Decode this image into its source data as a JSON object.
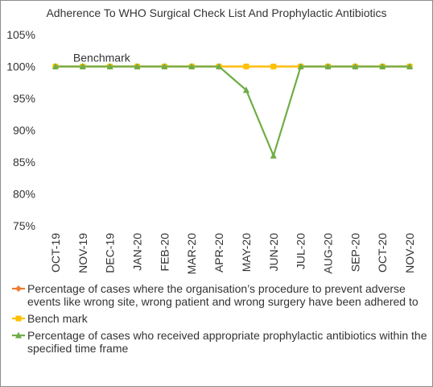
{
  "chart_data": {
    "type": "line",
    "title": "Adherence To WHO Surgical Check List And Prophylactic Antibiotics",
    "categories": [
      "OCT-19",
      "NOV-19",
      "DEC-19",
      "JAN-20",
      "FEB-20",
      "MAR-20",
      "APR-20",
      "MAY-20",
      "JUN-20",
      "JUL-20",
      "AUG-20",
      "SEP-20",
      "OCT-20",
      "NOV-20"
    ],
    "ylim": [
      75,
      105
    ],
    "yticks": [
      75,
      80,
      85,
      90,
      95,
      100,
      105
    ],
    "ytick_labels": [
      "75%",
      "80%",
      "85%",
      "90%",
      "95%",
      "100%",
      "105%"
    ],
    "grid": false,
    "legend_position": "bottom",
    "annotation": "Benchmark",
    "series": [
      {
        "name": "Percentage of cases where the organisation’s procedure to prevent adverse events like wrong site, wrong patient and wrong surgery have been adhered to",
        "color": "#ed7d31",
        "marker": "diamond",
        "values": [
          100,
          100,
          100,
          100,
          100,
          100,
          100,
          100,
          100,
          100,
          100,
          100,
          100,
          100
        ]
      },
      {
        "name": "Bench mark",
        "color": "#ffc000",
        "marker": "square",
        "values": [
          100,
          100,
          100,
          100,
          100,
          100,
          100,
          100,
          100,
          100,
          100,
          100,
          100,
          100
        ]
      },
      {
        "name": "Percentage of cases who received appropriate prophylactic antibiotics within the specified time frame",
        "color": "#70ad47",
        "marker": "triangle",
        "values": [
          100,
          100,
          100,
          100,
          100,
          100,
          100,
          96.3,
          86,
          100,
          100,
          100,
          100,
          100
        ]
      }
    ]
  }
}
